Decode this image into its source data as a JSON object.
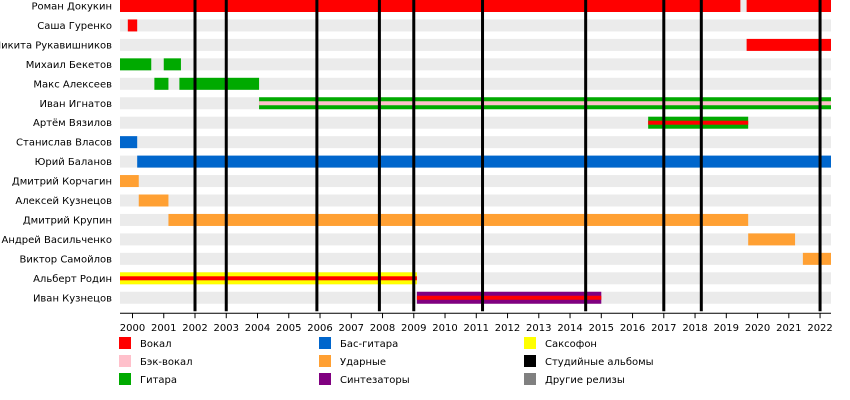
{
  "chart_data": {
    "type": "timeline",
    "title": "",
    "x_range": [
      1999.6,
      2022.35
    ],
    "members": [
      {
        "name": "Роман Докукин",
        "periods": [
          {
            "role": "Вокал",
            "start": 1999.6,
            "end": 2019.45
          },
          {
            "role": "Вокал",
            "start": 2019.65,
            "end": 2022.35
          }
        ]
      },
      {
        "name": "Саша Гуренко",
        "periods": [
          {
            "role": "Вокал",
            "start": 1999.85,
            "end": 2000.15
          }
        ]
      },
      {
        "name": "Никита Рукавишников",
        "periods": [
          {
            "role": "Вокал",
            "start": 2019.65,
            "end": 2022.35
          }
        ]
      },
      {
        "name": "Михаил Бекетов",
        "periods": [
          {
            "role": "Гитара",
            "start": 1999.6,
            "end": 2000.6
          },
          {
            "role": "Гитара",
            "start": 2001.0,
            "end": 2001.55
          }
        ]
      },
      {
        "name": "Макс Алексеев",
        "periods": [
          {
            "role": "Гитара",
            "start": 2000.7,
            "end": 2001.15
          },
          {
            "role": "Гитара",
            "start": 2001.5,
            "end": 2004.05
          }
        ]
      },
      {
        "name": "Иван Игнатов",
        "periods": [
          {
            "role": "Гитара",
            "start": 2004.05,
            "end": 2022.35,
            "secondary": "Бэк-вокал"
          }
        ]
      },
      {
        "name": "Артём Вязилов",
        "periods": [
          {
            "role": "Гитара",
            "start": 2016.5,
            "end": 2019.7,
            "secondary": "Вокал"
          }
        ]
      },
      {
        "name": "Станислав Власов",
        "periods": [
          {
            "role": "Бас-гитара",
            "start": 1999.6,
            "end": 2000.15
          }
        ]
      },
      {
        "name": "Юрий Баланов",
        "periods": [
          {
            "role": "Бас-гитара",
            "start": 2000.15,
            "end": 2022.35
          }
        ]
      },
      {
        "name": "Дмитрий Корчагин",
        "periods": [
          {
            "role": "Ударные",
            "start": 1999.6,
            "end": 2000.2
          }
        ]
      },
      {
        "name": "Алексей Кузнецов",
        "periods": [
          {
            "role": "Ударные",
            "start": 2000.2,
            "end": 2001.15
          }
        ]
      },
      {
        "name": "Дмитрий Крупин",
        "periods": [
          {
            "role": "Ударные",
            "start": 2001.15,
            "end": 2019.7
          }
        ]
      },
      {
        "name": "Андрей Васильченко",
        "periods": [
          {
            "role": "Ударные",
            "start": 2019.7,
            "end": 2021.2
          }
        ]
      },
      {
        "name": "Виктор Самойлов",
        "periods": [
          {
            "role": "Ударные",
            "start": 2021.45,
            "end": 2022.35
          }
        ]
      },
      {
        "name": "Альберт Родин",
        "periods": [
          {
            "role": "Саксофон",
            "start": 1999.6,
            "end": 2009.1,
            "secondary": "Вокал"
          }
        ]
      },
      {
        "name": "Иван Кузнецов",
        "periods": [
          {
            "role": "Синтезаторы",
            "start": 2009.1,
            "end": 2015.0,
            "secondary": "Вокал"
          }
        ]
      }
    ],
    "albums": [
      2002.0,
      2003.0,
      2005.9,
      2007.9,
      2009.0,
      2011.2,
      2014.5,
      2017.0,
      2018.2,
      2022.0
    ],
    "x_ticks": [
      "2000",
      "2001",
      "2002",
      "2003",
      "2004",
      "2005",
      "2006",
      "2007",
      "2008",
      "2009",
      "2010",
      "2011",
      "2012",
      "2013",
      "2014",
      "2015",
      "2016",
      "2017",
      "2018",
      "2019",
      "2020",
      "2021",
      "2022"
    ],
    "x_tick_values": [
      2000,
      2001,
      2002,
      2003,
      2004,
      2005,
      2006,
      2007,
      2008,
      2009,
      2010,
      2011,
      2012,
      2013,
      2014,
      2015,
      2016,
      2017,
      2018,
      2019,
      2020,
      2021,
      2022
    ],
    "legend": [
      {
        "label": "Вокал",
        "color": "#ff0000"
      },
      {
        "label": "Бас-гитара",
        "color": "#0066cc"
      },
      {
        "label": "Саксофон",
        "color": "#ffff00"
      },
      {
        "label": "Бэк-вокал",
        "color": "#ffc0cb"
      },
      {
        "label": "Ударные",
        "color": "#ffa033"
      },
      {
        "label": "Студийные альбомы",
        "color": "#000000"
      },
      {
        "label": "Гитара",
        "color": "#00aa00"
      },
      {
        "label": "Синтезаторы",
        "color": "#800080"
      },
      {
        "label": "Другие релизы",
        "color": "#808080"
      }
    ],
    "role_colors": {
      "Вокал": "#ff0000",
      "Бэк-вокал": "#ffc0cb",
      "Гитара": "#00aa00",
      "Бас-гитара": "#0066cc",
      "Ударные": "#ffa033",
      "Саксофон": "#ffff00",
      "Синтезаторы": "#800080",
      "Студийные альбомы": "#000000",
      "Другие релизы": "#808080"
    },
    "row_background": "#ebebeb",
    "grid": true,
    "legend_position": "bottom"
  }
}
